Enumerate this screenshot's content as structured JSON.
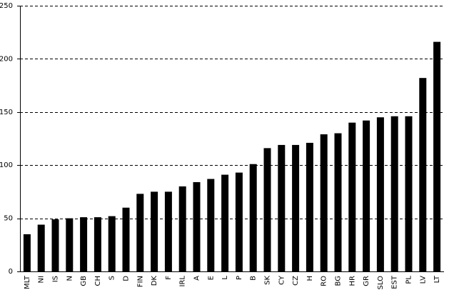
{
  "chart_data": {
    "type": "bar",
    "categories": [
      "MLT",
      "NI",
      "IS",
      "N",
      "GB",
      "CH",
      "S",
      "D",
      "FIN",
      "DK",
      "F",
      "IRL",
      "A",
      "E",
      "L",
      "P",
      "B",
      "SK",
      "CY",
      "CZ",
      "H",
      "RO",
      "BG",
      "HR",
      "GR",
      "SLO",
      "EST",
      "PL",
      "LV",
      "LT"
    ],
    "values": [
      35,
      44,
      49,
      50,
      51,
      51,
      52,
      60,
      73,
      75,
      75,
      80,
      84,
      87,
      91,
      93,
      101,
      116,
      119,
      119,
      121,
      129,
      130,
      140,
      142,
      145,
      146,
      146,
      182,
      216
    ],
    "color": "#000000",
    "ylim": [
      0,
      250
    ],
    "yticks": [
      0,
      50,
      100,
      150,
      200,
      250
    ],
    "grid": true
  }
}
